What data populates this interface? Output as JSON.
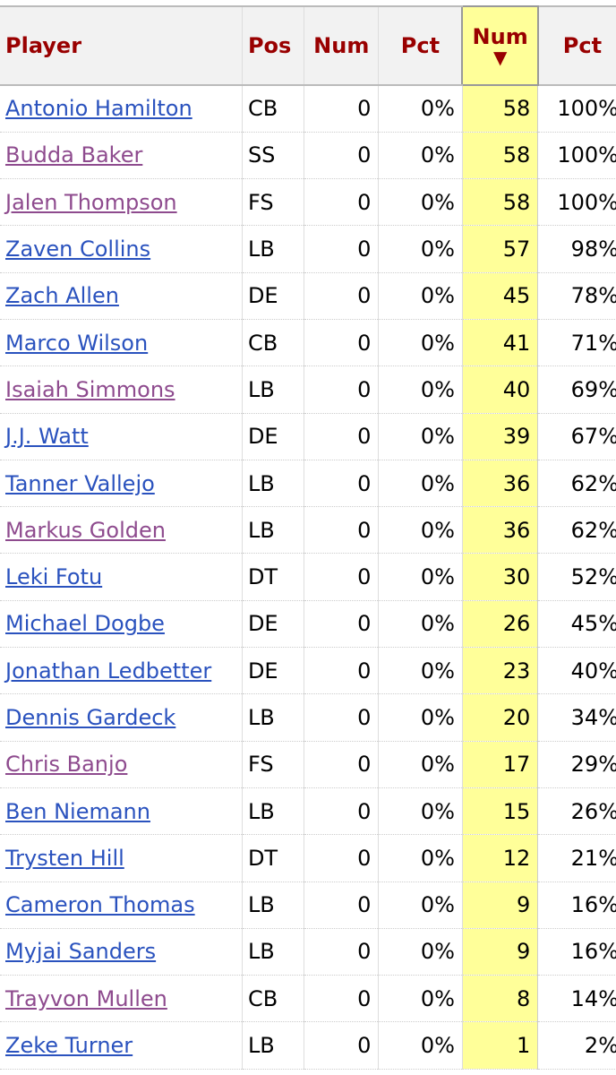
{
  "headers": {
    "player": "Player",
    "pos": "Pos",
    "num1": "Num",
    "pct1": "Pct",
    "num2": "Num",
    "sort_indicator": "▼",
    "pct2": "Pct"
  },
  "colors": {
    "header_text": "#990000",
    "header_bg": "#f2f2f2",
    "sorted_column_bg": "#ffff99",
    "link": "#2a52be",
    "link_visited": "#8e4b8e"
  },
  "rows": [
    {
      "player": "Antonio Hamilton",
      "visited": false,
      "pos": "CB",
      "num1": "0",
      "pct1": "0%",
      "num2": "58",
      "pct2": "100%"
    },
    {
      "player": "Budda Baker",
      "visited": true,
      "pos": "SS",
      "num1": "0",
      "pct1": "0%",
      "num2": "58",
      "pct2": "100%"
    },
    {
      "player": "Jalen Thompson",
      "visited": true,
      "pos": "FS",
      "num1": "0",
      "pct1": "0%",
      "num2": "58",
      "pct2": "100%"
    },
    {
      "player": "Zaven Collins",
      "visited": false,
      "pos": "LB",
      "num1": "0",
      "pct1": "0%",
      "num2": "57",
      "pct2": "98%"
    },
    {
      "player": "Zach Allen",
      "visited": false,
      "pos": "DE",
      "num1": "0",
      "pct1": "0%",
      "num2": "45",
      "pct2": "78%"
    },
    {
      "player": "Marco Wilson",
      "visited": false,
      "pos": "CB",
      "num1": "0",
      "pct1": "0%",
      "num2": "41",
      "pct2": "71%"
    },
    {
      "player": "Isaiah Simmons",
      "visited": true,
      "pos": "LB",
      "num1": "0",
      "pct1": "0%",
      "num2": "40",
      "pct2": "69%"
    },
    {
      "player": "J.J. Watt",
      "visited": false,
      "pos": "DE",
      "num1": "0",
      "pct1": "0%",
      "num2": "39",
      "pct2": "67%"
    },
    {
      "player": "Tanner Vallejo",
      "visited": false,
      "pos": "LB",
      "num1": "0",
      "pct1": "0%",
      "num2": "36",
      "pct2": "62%"
    },
    {
      "player": "Markus Golden",
      "visited": true,
      "pos": "LB",
      "num1": "0",
      "pct1": "0%",
      "num2": "36",
      "pct2": "62%"
    },
    {
      "player": "Leki Fotu",
      "visited": false,
      "pos": "DT",
      "num1": "0",
      "pct1": "0%",
      "num2": "30",
      "pct2": "52%"
    },
    {
      "player": "Michael Dogbe",
      "visited": false,
      "pos": "DE",
      "num1": "0",
      "pct1": "0%",
      "num2": "26",
      "pct2": "45%"
    },
    {
      "player": "Jonathan Ledbetter",
      "visited": false,
      "pos": "DE",
      "num1": "0",
      "pct1": "0%",
      "num2": "23",
      "pct2": "40%"
    },
    {
      "player": "Dennis Gardeck",
      "visited": false,
      "pos": "LB",
      "num1": "0",
      "pct1": "0%",
      "num2": "20",
      "pct2": "34%"
    },
    {
      "player": "Chris Banjo",
      "visited": true,
      "pos": "FS",
      "num1": "0",
      "pct1": "0%",
      "num2": "17",
      "pct2": "29%"
    },
    {
      "player": "Ben Niemann",
      "visited": false,
      "pos": "LB",
      "num1": "0",
      "pct1": "0%",
      "num2": "15",
      "pct2": "26%"
    },
    {
      "player": "Trysten Hill",
      "visited": false,
      "pos": "DT",
      "num1": "0",
      "pct1": "0%",
      "num2": "12",
      "pct2": "21%"
    },
    {
      "player": "Cameron Thomas",
      "visited": false,
      "pos": "LB",
      "num1": "0",
      "pct1": "0%",
      "num2": "9",
      "pct2": "16%"
    },
    {
      "player": "Myjai Sanders",
      "visited": false,
      "pos": "LB",
      "num1": "0",
      "pct1": "0%",
      "num2": "9",
      "pct2": "16%"
    },
    {
      "player": "Trayvon Mullen",
      "visited": true,
      "pos": "CB",
      "num1": "0",
      "pct1": "0%",
      "num2": "8",
      "pct2": "14%"
    },
    {
      "player": "Zeke Turner",
      "visited": false,
      "pos": "LB",
      "num1": "0",
      "pct1": "0%",
      "num2": "1",
      "pct2": "2%"
    }
  ]
}
